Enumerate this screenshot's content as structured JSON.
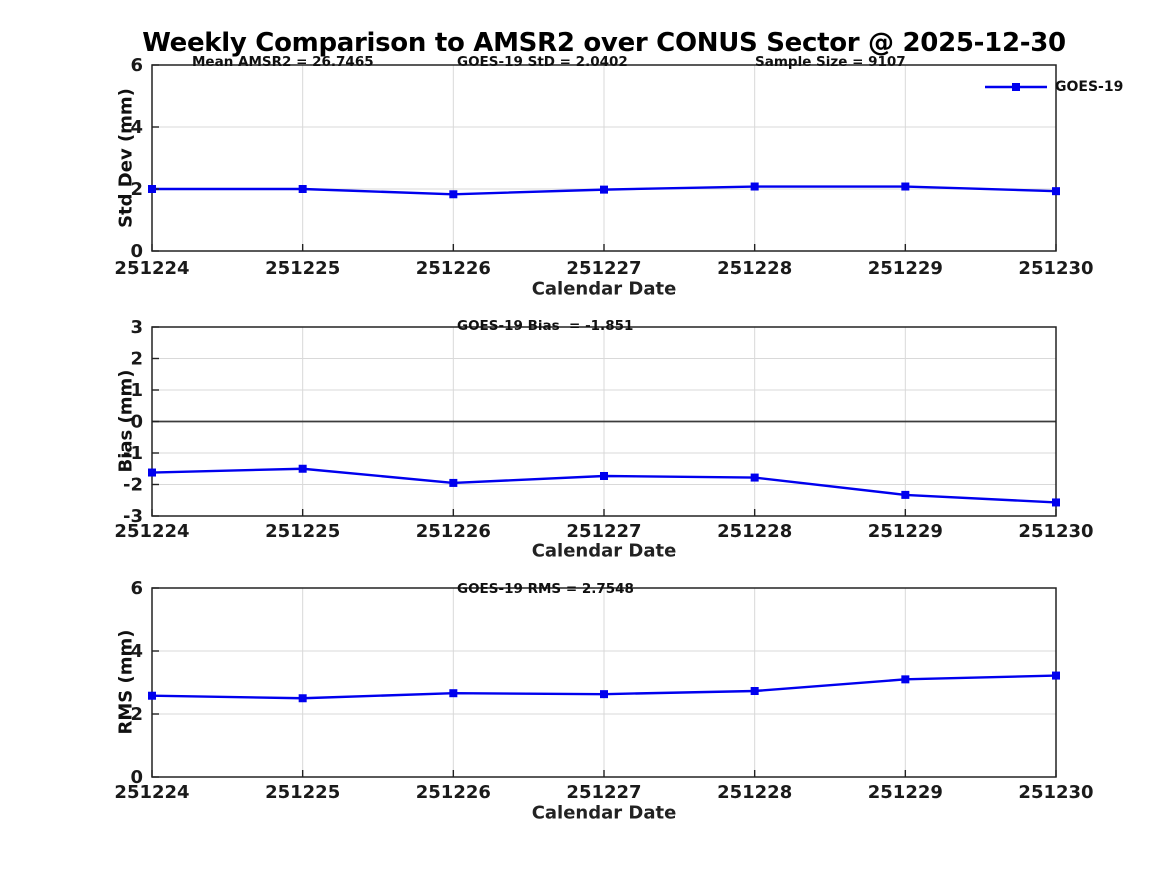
{
  "title": "Weekly Comparison to AMSR2 over CONUS Sector @ 2025-12-30",
  "colors": {
    "series": "#0000ee",
    "grid": "#d9d9d9",
    "axis": "#222222",
    "zero_line": "#3c3c3c",
    "text": "#1a1a1a"
  },
  "legend": {
    "label": "GOES-19"
  },
  "chart_data": [
    {
      "type": "line",
      "panel": "std-dev",
      "ylabel": "Std Dev (mm)",
      "xlabel": "Calendar Date",
      "categories": [
        "251224",
        "251225",
        "251226",
        "251227",
        "251228",
        "251229",
        "251230"
      ],
      "series": [
        {
          "name": "GOES-19",
          "color": "#0000ee",
          "marker": "square",
          "values": [
            2.0,
            2.0,
            1.83,
            1.98,
            2.08,
            2.08,
            1.93
          ]
        }
      ],
      "ylim": [
        0,
        6
      ],
      "yticks": [
        0,
        2,
        4,
        6
      ],
      "grid": true,
      "zero_line": false,
      "annotations": [
        "Mean AMSR2 = 26.7465",
        "GOES-19 StD = 2.0402",
        "Sample Size = 9107"
      ],
      "legend_position": "upper right"
    },
    {
      "type": "line",
      "panel": "bias",
      "ylabel": "Bias (mm)",
      "xlabel": "Calendar Date",
      "categories": [
        "251224",
        "251225",
        "251226",
        "251227",
        "251228",
        "251229",
        "251230"
      ],
      "series": [
        {
          "name": "GOES-19",
          "color": "#0000ee",
          "marker": "square",
          "values": [
            -1.62,
            -1.5,
            -1.95,
            -1.73,
            -1.78,
            -2.33,
            -2.57
          ]
        }
      ],
      "ylim": [
        -3,
        3
      ],
      "yticks": [
        -3,
        -2,
        -1,
        0,
        1,
        2,
        3
      ],
      "grid": true,
      "zero_line": true,
      "annotations": [
        "GOES-19 Bias  = -1.851"
      ]
    },
    {
      "type": "line",
      "panel": "rms",
      "ylabel": "RMS (mm)",
      "xlabel": "Calendar Date",
      "categories": [
        "251224",
        "251225",
        "251226",
        "251227",
        "251228",
        "251229",
        "251230"
      ],
      "series": [
        {
          "name": "GOES-19",
          "color": "#0000ee",
          "marker": "square",
          "values": [
            2.58,
            2.5,
            2.66,
            2.63,
            2.73,
            3.1,
            3.22
          ]
        }
      ],
      "ylim": [
        0,
        6
      ],
      "yticks": [
        0,
        2,
        4,
        6
      ],
      "grid": true,
      "zero_line": false,
      "annotations": [
        "GOES-19 RMS = 2.7548"
      ]
    }
  ]
}
